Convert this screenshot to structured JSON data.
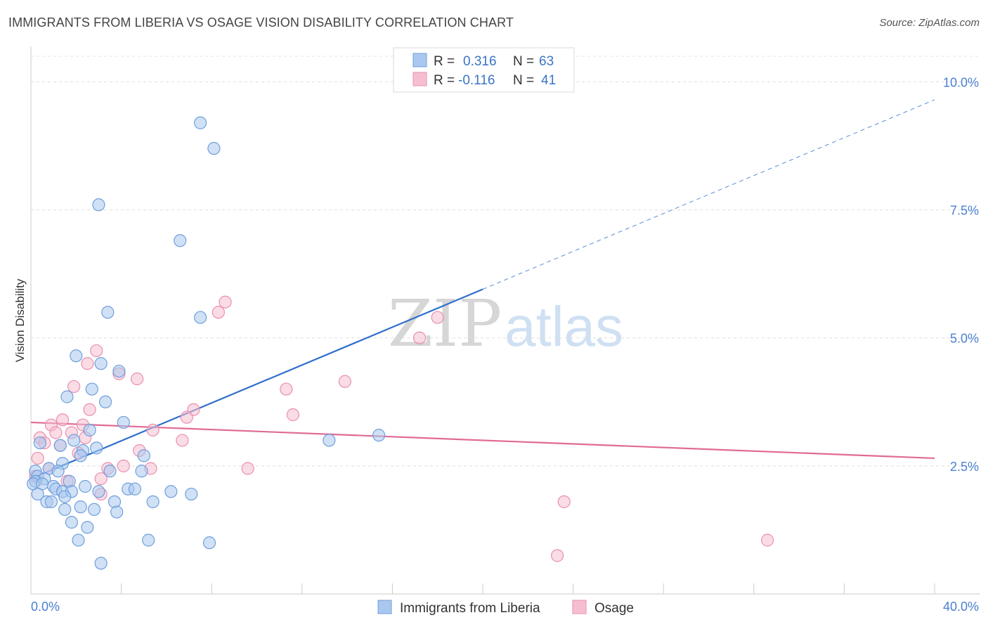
{
  "header": {
    "title": "IMMIGRANTS FROM LIBERIA VS OSAGE VISION DISABILITY CORRELATION CHART",
    "source": "Source: ZipAtlas.com"
  },
  "watermark": {
    "part1": "ZIP",
    "part2": "atlas"
  },
  "legend_top": {
    "rows": [
      {
        "r_label": "R =",
        "r_value": "0.316",
        "n_label": "N =",
        "n_value": "63"
      },
      {
        "r_label": "R =",
        "r_value": "-0.116",
        "n_label": "N =",
        "n_value": "41"
      }
    ]
  },
  "legend_bottom": [
    "Immigrants from Liberia",
    "Osage"
  ],
  "chart_data": {
    "type": "scatter",
    "title": "IMMIGRANTS FROM LIBERIA VS OSAGE VISION DISABILITY CORRELATION CHART",
    "xlabel": "",
    "ylabel": "Vision Disability",
    "xlim": [
      0,
      40
    ],
    "ylim": [
      0,
      10.5
    ],
    "x_tick_labels": [
      "0.0%",
      "40.0%"
    ],
    "y_ticks": [
      2.5,
      5.0,
      7.5,
      10.0
    ],
    "y_tick_labels": [
      "2.5%",
      "5.0%",
      "7.5%",
      "10.0%"
    ],
    "grid": true,
    "legend_position": "top-center",
    "colors": {
      "series1_fill": "#aac8ef",
      "series1_stroke": "#6f9fdc",
      "series1_line": "#2f6fcc",
      "series2_fill": "#f6bfd0",
      "series2_stroke": "#ea8fae",
      "series2_line": "#e06a96"
    },
    "series": [
      {
        "name": "Immigrants from Liberia",
        "r": 0.316,
        "n": 63,
        "trend": {
          "x0": 0,
          "y0": 2.25,
          "x1": 20,
          "y1": 5.95,
          "dash_to_x": 40,
          "dash_to_y": 9.65
        },
        "points": [
          [
            7.5,
            9.2
          ],
          [
            8.1,
            8.7
          ],
          [
            3.0,
            7.6
          ],
          [
            6.6,
            6.9
          ],
          [
            3.4,
            5.5
          ],
          [
            7.5,
            5.4
          ],
          [
            2.0,
            4.65
          ],
          [
            3.1,
            4.5
          ],
          [
            3.9,
            4.35
          ],
          [
            2.7,
            4.0
          ],
          [
            1.6,
            3.85
          ],
          [
            3.3,
            3.75
          ],
          [
            4.1,
            3.35
          ],
          [
            2.6,
            3.2
          ],
          [
            15.4,
            3.1
          ],
          [
            13.2,
            3.0
          ],
          [
            0.4,
            2.95
          ],
          [
            1.3,
            2.9
          ],
          [
            1.9,
            3.0
          ],
          [
            2.9,
            2.85
          ],
          [
            2.3,
            2.8
          ],
          [
            2.2,
            2.7
          ],
          [
            5.0,
            2.7
          ],
          [
            1.4,
            2.55
          ],
          [
            0.2,
            2.4
          ],
          [
            0.8,
            2.45
          ],
          [
            1.2,
            2.4
          ],
          [
            3.5,
            2.4
          ],
          [
            4.9,
            2.4
          ],
          [
            0.3,
            2.3
          ],
          [
            0.6,
            2.25
          ],
          [
            0.2,
            2.2
          ],
          [
            0.1,
            2.15
          ],
          [
            1.7,
            2.2
          ],
          [
            0.5,
            2.15
          ],
          [
            1.0,
            2.1
          ],
          [
            2.4,
            2.1
          ],
          [
            1.1,
            2.05
          ],
          [
            4.3,
            2.05
          ],
          [
            4.6,
            2.05
          ],
          [
            1.4,
            2.0
          ],
          [
            1.8,
            2.0
          ],
          [
            3.0,
            2.0
          ],
          [
            6.2,
            2.0
          ],
          [
            7.1,
            1.95
          ],
          [
            0.3,
            1.95
          ],
          [
            1.5,
            1.9
          ],
          [
            0.7,
            1.8
          ],
          [
            0.9,
            1.8
          ],
          [
            3.7,
            1.8
          ],
          [
            5.4,
            1.8
          ],
          [
            2.2,
            1.7
          ],
          [
            1.5,
            1.65
          ],
          [
            2.8,
            1.65
          ],
          [
            3.8,
            1.6
          ],
          [
            1.8,
            1.4
          ],
          [
            2.5,
            1.3
          ],
          [
            2.1,
            1.05
          ],
          [
            5.2,
            1.05
          ],
          [
            7.9,
            1.0
          ],
          [
            3.1,
            0.6
          ]
        ]
      },
      {
        "name": "Osage",
        "r": -0.116,
        "n": 41,
        "trend": {
          "x0": 0,
          "y0": 3.35,
          "x1": 40,
          "y1": 2.65
        },
        "points": [
          [
            8.6,
            5.7
          ],
          [
            8.3,
            5.5
          ],
          [
            18.0,
            5.4
          ],
          [
            17.2,
            5.0
          ],
          [
            2.9,
            4.75
          ],
          [
            2.5,
            4.5
          ],
          [
            3.9,
            4.3
          ],
          [
            4.7,
            4.2
          ],
          [
            13.9,
            4.15
          ],
          [
            1.9,
            4.05
          ],
          [
            11.3,
            4.0
          ],
          [
            7.2,
            3.6
          ],
          [
            2.6,
            3.6
          ],
          [
            11.6,
            3.5
          ],
          [
            6.9,
            3.45
          ],
          [
            1.4,
            3.4
          ],
          [
            2.3,
            3.3
          ],
          [
            0.9,
            3.3
          ],
          [
            5.4,
            3.2
          ],
          [
            1.1,
            3.15
          ],
          [
            1.8,
            3.15
          ],
          [
            0.4,
            3.05
          ],
          [
            2.4,
            3.05
          ],
          [
            6.7,
            3.0
          ],
          [
            0.6,
            2.95
          ],
          [
            1.3,
            2.9
          ],
          [
            4.8,
            2.8
          ],
          [
            2.1,
            2.75
          ],
          [
            0.3,
            2.65
          ],
          [
            4.1,
            2.5
          ],
          [
            5.3,
            2.45
          ],
          [
            0.8,
            2.45
          ],
          [
            3.4,
            2.45
          ],
          [
            9.6,
            2.45
          ],
          [
            0.2,
            2.3
          ],
          [
            3.1,
            2.25
          ],
          [
            1.6,
            2.2
          ],
          [
            3.1,
            1.95
          ],
          [
            23.6,
            1.8
          ],
          [
            32.6,
            1.05
          ],
          [
            23.3,
            0.75
          ]
        ]
      }
    ]
  }
}
